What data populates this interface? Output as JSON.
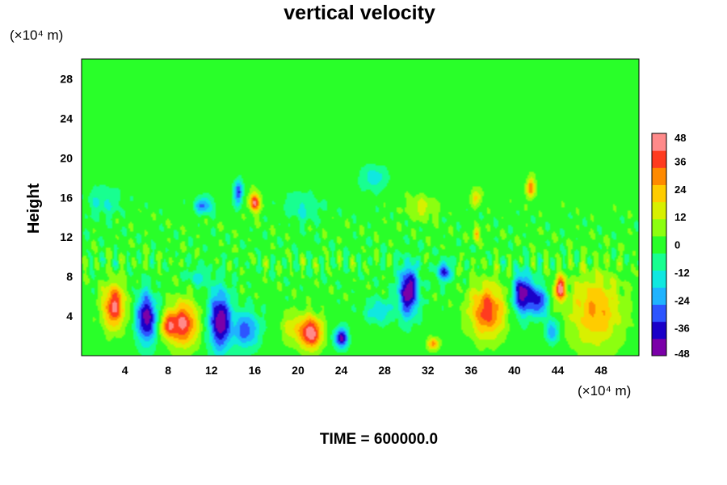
{
  "chart_data": {
    "type": "heatmap",
    "title": "vertical velocity",
    "xlabel": "",
    "ylabel": "Height",
    "x_unit": "(×10⁴ m)",
    "y_unit": "(×10⁴ m)",
    "xlim": [
      0,
      51.5
    ],
    "ylim": [
      0,
      30
    ],
    "xticks": [
      4,
      8,
      12,
      16,
      20,
      24,
      28,
      32,
      36,
      40,
      44,
      48
    ],
    "yticks": [
      4,
      8,
      12,
      16,
      20,
      24,
      28
    ],
    "colorbar": {
      "min": -48,
      "max": 48,
      "ticks": [
        48,
        36,
        24,
        12,
        0,
        -12,
        -24,
        -36,
        -48
      ],
      "palette": [
        "#7b00a8",
        "#1a00c8",
        "#2d55ff",
        "#1fb3ff",
        "#10e8e0",
        "#18ff90",
        "#29ff29",
        "#8cff10",
        "#d8f000",
        "#ffcc00",
        "#ff8a00",
        "#ff3b1f",
        "#ff8a8a"
      ]
    },
    "features": [
      {
        "x": 3.0,
        "y": 5.0,
        "value": 42,
        "sx": 1.0,
        "sy": 2.2
      },
      {
        "x": 6.0,
        "y": 3.8,
        "value": -46,
        "sx": 0.9,
        "sy": 2.5
      },
      {
        "x": 8.0,
        "y": 3.0,
        "value": 28,
        "sx": 0.7,
        "sy": 1.2
      },
      {
        "x": 9.4,
        "y": 3.2,
        "value": 42,
        "sx": 1.3,
        "sy": 2.2
      },
      {
        "x": 12.8,
        "y": 3.5,
        "value": -48,
        "sx": 1.0,
        "sy": 3.0
      },
      {
        "x": 15.2,
        "y": 2.6,
        "value": -30,
        "sx": 1.2,
        "sy": 1.8
      },
      {
        "x": 16.0,
        "y": 15.5,
        "value": 42,
        "sx": 0.5,
        "sy": 1.0
      },
      {
        "x": 14.5,
        "y": 16.5,
        "value": -34,
        "sx": 0.4,
        "sy": 1.2
      },
      {
        "x": 11.3,
        "y": 15.2,
        "value": -28,
        "sx": 0.8,
        "sy": 0.8
      },
      {
        "x": 21.2,
        "y": 2.3,
        "value": 48,
        "sx": 1.0,
        "sy": 1.6
      },
      {
        "x": 24.0,
        "y": 1.8,
        "value": -44,
        "sx": 0.6,
        "sy": 1.0
      },
      {
        "x": 27.5,
        "y": 4.5,
        "value": -18,
        "sx": 1.2,
        "sy": 1.2
      },
      {
        "x": 30.2,
        "y": 6.5,
        "value": -48,
        "sx": 0.9,
        "sy": 2.5
      },
      {
        "x": 33.5,
        "y": 8.5,
        "value": -36,
        "sx": 0.6,
        "sy": 1.0
      },
      {
        "x": 32.5,
        "y": 1.2,
        "value": 30,
        "sx": 0.5,
        "sy": 0.6
      },
      {
        "x": 37.5,
        "y": 4.5,
        "value": 38,
        "sx": 1.6,
        "sy": 2.6
      },
      {
        "x": 40.8,
        "y": 6.2,
        "value": -48,
        "sx": 0.9,
        "sy": 2.0
      },
      {
        "x": 42.3,
        "y": 5.5,
        "value": -36,
        "sx": 0.7,
        "sy": 1.5
      },
      {
        "x": 43.5,
        "y": 2.5,
        "value": -26,
        "sx": 0.6,
        "sy": 1.2
      },
      {
        "x": 44.2,
        "y": 6.8,
        "value": 44,
        "sx": 0.5,
        "sy": 1.2
      },
      {
        "x": 47.5,
        "y": 4.5,
        "value": 26,
        "sx": 2.4,
        "sy": 3.6
      },
      {
        "x": 41.5,
        "y": 17.0,
        "value": 32,
        "sx": 0.4,
        "sy": 1.0
      },
      {
        "x": 36.5,
        "y": 16.0,
        "value": 20,
        "sx": 0.5,
        "sy": 0.8
      },
      {
        "x": 27.0,
        "y": 18.0,
        "value": -16,
        "sx": 1.2,
        "sy": 1.2
      },
      {
        "x": 36.5,
        "y": 12.3,
        "value": 28,
        "sx": 0.3,
        "sy": 0.7
      },
      {
        "x": 19.5,
        "y": 2.8,
        "value": 16,
        "sx": 1.0,
        "sy": 1.5
      },
      {
        "x": 10.8,
        "y": 8.0,
        "value": -14,
        "sx": 1.0,
        "sy": 1.0
      },
      {
        "x": 20.5,
        "y": 15.0,
        "value": -12,
        "sx": 1.5,
        "sy": 1.5
      },
      {
        "x": 31.5,
        "y": 15.0,
        "value": 14,
        "sx": 1.4,
        "sy": 1.2
      },
      {
        "x": 2.0,
        "y": 15.5,
        "value": -12,
        "sx": 1.5,
        "sy": 1.5
      }
    ]
  },
  "footer": {
    "time_label": "TIME = 600000.0"
  }
}
